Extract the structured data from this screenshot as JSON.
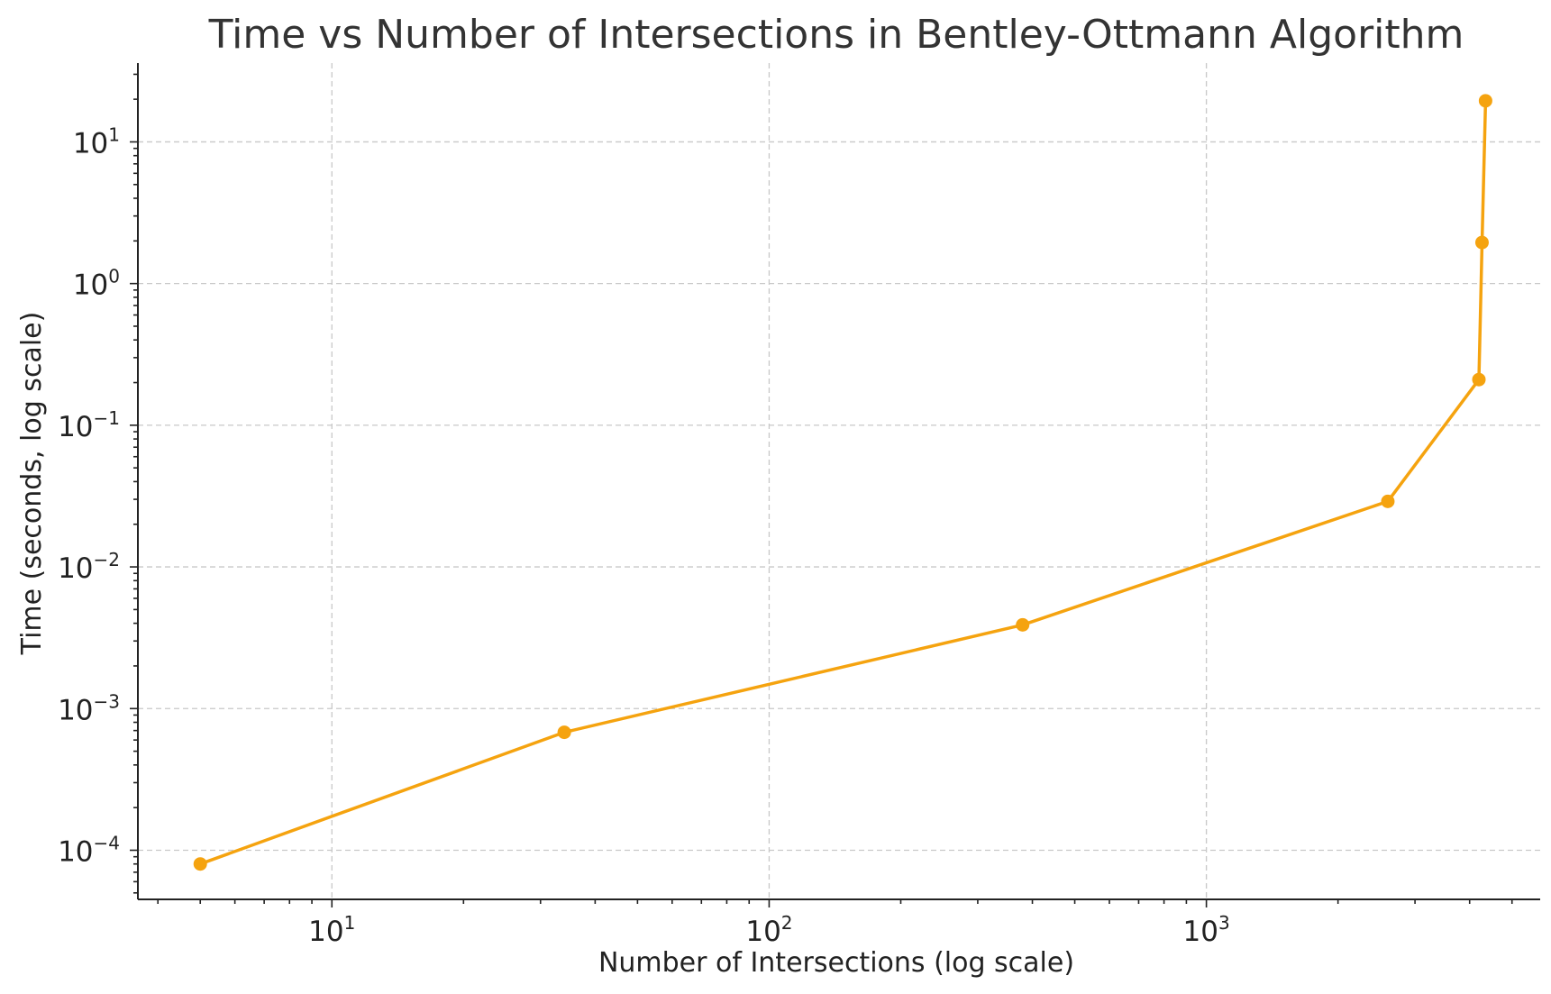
{
  "chart_data": {
    "type": "line",
    "title": "Time vs Number of Intersections in Bentley-Ottmann Algorithm",
    "xlabel": "Number of Intersections (log scale)",
    "ylabel": "Time (seconds, log scale)",
    "xscale": "log",
    "yscale": "log",
    "xlim": [
      3.6,
      5800
    ],
    "ylim": [
      4.5e-05,
      36
    ],
    "grid": true,
    "x_ticks": [
      {
        "base": "10",
        "exp": "1",
        "value": 10
      },
      {
        "base": "10",
        "exp": "2",
        "value": 100
      },
      {
        "base": "10",
        "exp": "3",
        "value": 1000
      }
    ],
    "y_ticks": [
      {
        "base": "10",
        "exp": "1",
        "value": 10
      },
      {
        "base": "10",
        "exp": "0",
        "value": 1
      },
      {
        "base": "10",
        "exp": "−1",
        "value": 0.1
      },
      {
        "base": "10",
        "exp": "−2",
        "value": 0.01
      },
      {
        "base": "10",
        "exp": "−3",
        "value": 0.001
      },
      {
        "base": "10",
        "exp": "−4",
        "value": 0.0001
      }
    ],
    "series": [
      {
        "color": "#f5a30f",
        "x": [
          5,
          34,
          380,
          2600,
          4200,
          4270,
          4350
        ],
        "y": [
          8e-05,
          0.00068,
          0.0039,
          0.029,
          0.21,
          1.95,
          19.5
        ]
      }
    ]
  }
}
